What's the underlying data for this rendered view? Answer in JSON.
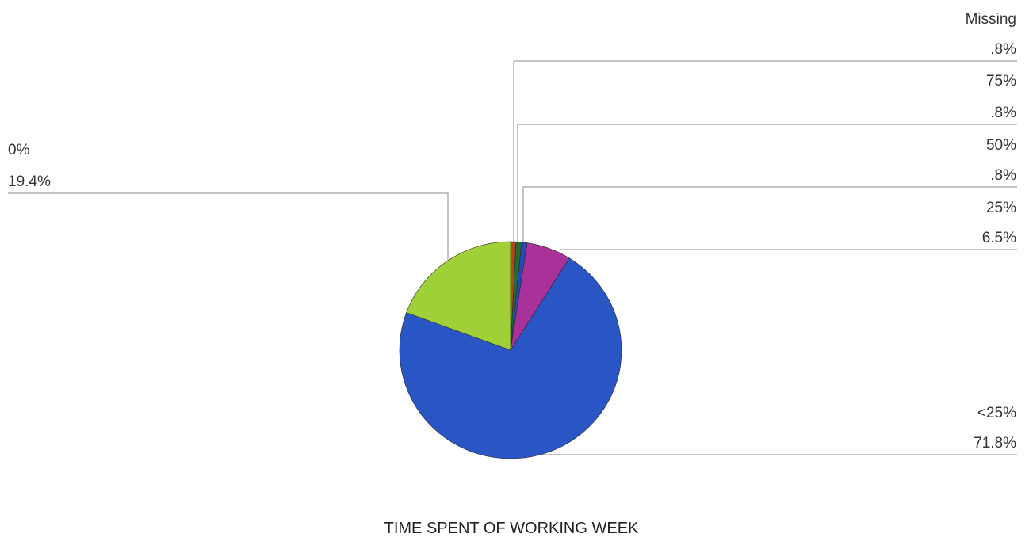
{
  "chart_data": {
    "type": "pie",
    "title": "TIME SPENT OF WORKING WEEK",
    "slices": [
      {
        "name": "Missing",
        "value": 0.8,
        "label": ".8%",
        "color": "#b5451b"
      },
      {
        "name": "75%",
        "value": 0.8,
        "label": ".8%",
        "color": "#1f6e3a"
      },
      {
        "name": "50%",
        "value": 0.8,
        "label": ".8%",
        "color": "#2848b8"
      },
      {
        "name": "25%",
        "value": 6.5,
        "label": "6.5%",
        "color": "#a8329a"
      },
      {
        "name": "<25%",
        "value": 71.8,
        "label": "71.8%",
        "color": "#2a55c4"
      },
      {
        "name": "0%",
        "value": 19.4,
        "label": "19.4%",
        "color": "#9fd037"
      }
    ],
    "start_angle": "12 o'clock",
    "direction": "clockwise",
    "legend": "none (callout labels with leader lines)",
    "grid": false
  }
}
